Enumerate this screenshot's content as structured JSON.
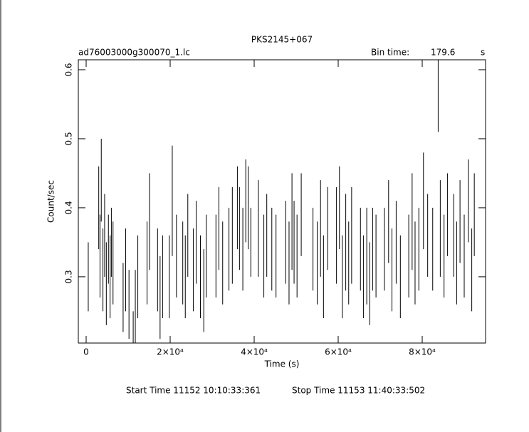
{
  "chart_data": {
    "type": "errorbar",
    "title": "PKS2145+067",
    "subtitle": "ad76003000g300070_1.lc",
    "bin_time_label": "Bin time:",
    "bin_time_value": "179.6",
    "bin_time_unit": "s",
    "x_label": "Time (s)",
    "y_label": "Count/sec",
    "start_time": "Start Time 11152 10:10:33:361",
    "stop_time": "Stop Time 11153 11:40:33:502",
    "xlim": [
      -1864,
      95085
    ],
    "ylim": [
      0.204,
      0.6144
    ],
    "xticks": [
      0,
      {
        "value": 20000,
        "label": "2×10⁴"
      },
      {
        "value": 40000,
        "label": "4×10⁴"
      },
      {
        "value": 60000,
        "label": "6×10⁴"
      },
      {
        "value": 80000,
        "label": "8×10⁴"
      }
    ],
    "yticks": [
      0.3,
      0.4,
      0.5,
      0.6
    ],
    "x": [
      500,
      3000,
      3300,
      3600,
      4000,
      4400,
      4800,
      5300,
      5700,
      6000,
      6400,
      8800,
      9400,
      10200,
      11200,
      11700,
      12300,
      14500,
      15100,
      17000,
      17600,
      18200,
      19800,
      20500,
      21500,
      23000,
      23600,
      24200,
      25500,
      26200,
      27200,
      28000,
      28600,
      30900,
      31600,
      32500,
      34000,
      34800,
      36000,
      36500,
      37300,
      38000,
      38600,
      39200,
      41000,
      42300,
      43000,
      44200,
      45200,
      47500,
      48300,
      49000,
      49500,
      50200,
      51200,
      54000,
      55000,
      55800,
      56500,
      57500,
      59600,
      60300,
      61000,
      61800,
      62500,
      63200,
      65300,
      66000,
      66800,
      67500,
      68200,
      69000,
      71000,
      72000,
      72800,
      73800,
      74800,
      76800,
      77600,
      78300,
      79200,
      80300,
      81300,
      82500,
      83800,
      84300,
      85200,
      86000,
      87500,
      88200,
      89000,
      90000,
      91000,
      91800,
      92400
    ],
    "series": [
      {
        "color": "#000000",
        "values": [
          0.3,
          0.4,
          0.33,
          0.44,
          0.31,
          0.36,
          0.29,
          0.34,
          0.3,
          0.35,
          0.32,
          0.27,
          0.31,
          0.26,
          0.2,
          0.25,
          0.3,
          0.32,
          0.38,
          0.31,
          0.27,
          0.3,
          0.3,
          0.41,
          0.33,
          0.32,
          0.3,
          0.36,
          0.31,
          0.35,
          0.3,
          0.28,
          0.33,
          0.33,
          0.37,
          0.32,
          0.34,
          0.36,
          0.4,
          0.37,
          0.34,
          0.41,
          0.4,
          0.35,
          0.37,
          0.33,
          0.36,
          0.34,
          0.33,
          0.35,
          0.32,
          0.38,
          0.35,
          0.33,
          0.39,
          0.34,
          0.32,
          0.37,
          0.3,
          0.37,
          0.36,
          0.4,
          0.3,
          0.35,
          0.32,
          0.36,
          0.34,
          0.3,
          0.33,
          0.29,
          0.34,
          0.33,
          0.34,
          0.38,
          0.31,
          0.35,
          0.3,
          0.33,
          0.38,
          0.32,
          0.34,
          0.41,
          0.36,
          0.34,
          0.57,
          0.37,
          0.33,
          0.39,
          0.36,
          0.32,
          0.38,
          0.33,
          0.41,
          0.31,
          0.39
        ],
        "errors": [
          0.05,
          0.06,
          0.06,
          0.06,
          0.06,
          0.06,
          0.06,
          0.05,
          0.06,
          0.05,
          0.06,
          0.05,
          0.06,
          0.05,
          0.05,
          0.06,
          0.06,
          0.06,
          0.07,
          0.06,
          0.06,
          0.06,
          0.06,
          0.08,
          0.06,
          0.06,
          0.06,
          0.06,
          0.06,
          0.06,
          0.06,
          0.06,
          0.06,
          0.06,
          0.06,
          0.06,
          0.06,
          0.07,
          0.06,
          0.06,
          0.06,
          0.06,
          0.06,
          0.05,
          0.07,
          0.06,
          0.06,
          0.06,
          0.06,
          0.06,
          0.06,
          0.07,
          0.06,
          0.06,
          0.06,
          0.06,
          0.06,
          0.07,
          0.06,
          0.06,
          0.07,
          0.06,
          0.06,
          0.07,
          0.06,
          0.07,
          0.06,
          0.06,
          0.07,
          0.06,
          0.06,
          0.06,
          0.06,
          0.06,
          0.06,
          0.06,
          0.06,
          0.06,
          0.07,
          0.06,
          0.06,
          0.07,
          0.06,
          0.06,
          0.06,
          0.07,
          0.06,
          0.06,
          0.06,
          0.06,
          0.06,
          0.06,
          0.06,
          0.06,
          0.06
        ]
      }
    ]
  }
}
